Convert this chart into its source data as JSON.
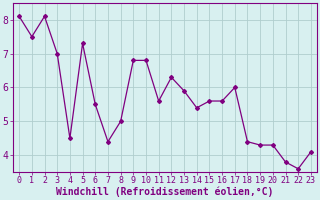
{
  "x": [
    0,
    1,
    2,
    3,
    4,
    5,
    6,
    7,
    8,
    9,
    10,
    11,
    12,
    13,
    14,
    15,
    16,
    17,
    18,
    19,
    20,
    21,
    22,
    23
  ],
  "y": [
    8.1,
    7.5,
    8.1,
    7.0,
    4.5,
    7.3,
    5.5,
    4.4,
    5.0,
    6.8,
    6.8,
    5.6,
    6.3,
    5.9,
    5.4,
    5.6,
    5.6,
    6.0,
    4.4,
    4.3,
    4.3,
    3.8,
    3.6,
    4.1
  ],
  "xlim": [
    -0.5,
    23.5
  ],
  "ylim": [
    3.5,
    8.5
  ],
  "yticks": [
    4,
    5,
    6,
    7,
    8
  ],
  "xticks": [
    0,
    1,
    2,
    3,
    4,
    5,
    6,
    7,
    8,
    9,
    10,
    11,
    12,
    13,
    14,
    15,
    16,
    17,
    18,
    19,
    20,
    21,
    22,
    23
  ],
  "xlabel": "Windchill (Refroidissement éolien,°C)",
  "line_color": "#800080",
  "marker": "D",
  "marker_size": 2,
  "bg_color": "#d8f0f0",
  "grid_color": "#b0cece",
  "tick_label_color": "#800080",
  "xlabel_color": "#800080",
  "xlabel_fontsize": 7,
  "xlabel_fontweight": "bold",
  "tick_fontsize": 6,
  "ytick_fontsize": 7,
  "line_width": 0.9,
  "spine_color": "#800080"
}
